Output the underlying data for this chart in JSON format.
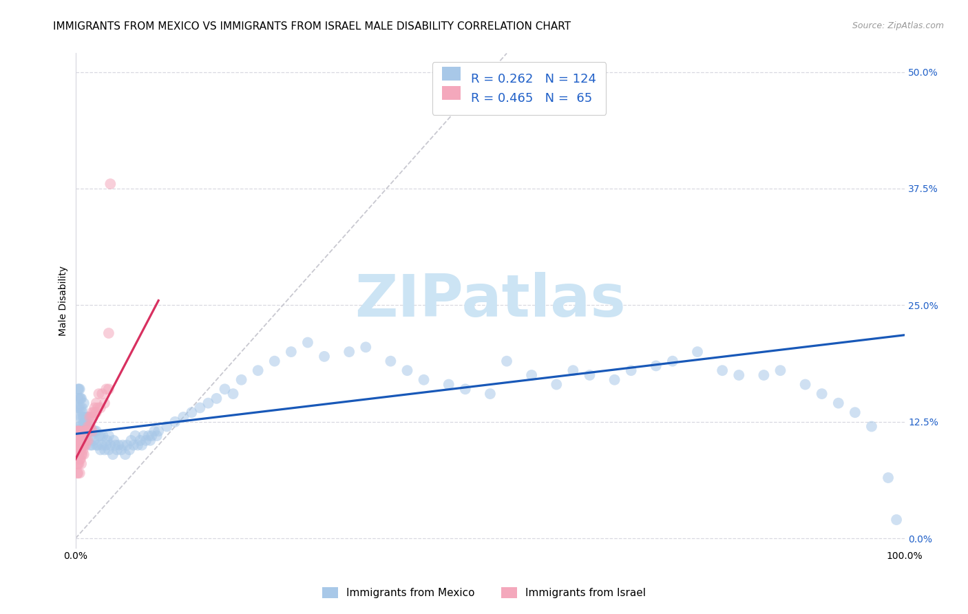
{
  "title": "IMMIGRANTS FROM MEXICO VS IMMIGRANTS FROM ISRAEL MALE DISABILITY CORRELATION CHART",
  "source": "Source: ZipAtlas.com",
  "ylabel": "Male Disability",
  "xlim": [
    0.0,
    1.0
  ],
  "ylim": [
    -0.01,
    0.52
  ],
  "ytick_vals": [
    0.0,
    0.125,
    0.25,
    0.375,
    0.5
  ],
  "ytick_labels": [
    "0.0%",
    "12.5%",
    "25.0%",
    "37.5%",
    "50.0%"
  ],
  "xtick_vals": [
    0.0,
    1.0
  ],
  "xtick_labels": [
    "0.0%",
    "100.0%"
  ],
  "color_mexico": "#a8c8e8",
  "color_israel": "#f4a8bc",
  "color_trendline_mexico": "#1858b8",
  "color_trendline_israel": "#d83060",
  "color_diagonal": "#c8c8d0",
  "color_grid": "#d8d8e0",
  "color_right_ticks": "#2060c8",
  "background_color": "#ffffff",
  "watermark": "ZIPatlas",
  "watermark_color": "#cce4f4",
  "legend_r_mexico": "0.262",
  "legend_n_mexico": "124",
  "legend_r_israel": "0.465",
  "legend_n_israel": " 65",
  "title_fontsize": 11,
  "axis_label_fontsize": 10,
  "tick_fontsize": 10,
  "legend_fontsize": 13,
  "source_fontsize": 9,
  "scatter_size": 130,
  "scatter_alpha": 0.55,
  "mexico_x": [
    0.002,
    0.003,
    0.003,
    0.004,
    0.004,
    0.004,
    0.005,
    0.005,
    0.005,
    0.005,
    0.006,
    0.006,
    0.006,
    0.007,
    0.007,
    0.007,
    0.008,
    0.008,
    0.008,
    0.009,
    0.009,
    0.01,
    0.01,
    0.01,
    0.01,
    0.011,
    0.012,
    0.012,
    0.013,
    0.013,
    0.014,
    0.015,
    0.015,
    0.016,
    0.017,
    0.018,
    0.018,
    0.019,
    0.02,
    0.02,
    0.022,
    0.023,
    0.025,
    0.025,
    0.027,
    0.028,
    0.03,
    0.03,
    0.032,
    0.033,
    0.035,
    0.037,
    0.038,
    0.04,
    0.04,
    0.042,
    0.045,
    0.046,
    0.048,
    0.05,
    0.052,
    0.055,
    0.057,
    0.06,
    0.062,
    0.065,
    0.067,
    0.07,
    0.072,
    0.075,
    0.078,
    0.08,
    0.082,
    0.085,
    0.088,
    0.09,
    0.092,
    0.095,
    0.098,
    0.1,
    0.11,
    0.12,
    0.13,
    0.14,
    0.15,
    0.16,
    0.17,
    0.18,
    0.19,
    0.2,
    0.22,
    0.24,
    0.26,
    0.28,
    0.3,
    0.33,
    0.35,
    0.38,
    0.4,
    0.42,
    0.45,
    0.47,
    0.5,
    0.52,
    0.55,
    0.58,
    0.6,
    0.62,
    0.65,
    0.67,
    0.7,
    0.72,
    0.75,
    0.78,
    0.8,
    0.83,
    0.85,
    0.88,
    0.9,
    0.92,
    0.94,
    0.96,
    0.98,
    0.99
  ],
  "mexico_y": [
    0.14,
    0.15,
    0.16,
    0.12,
    0.14,
    0.16,
    0.11,
    0.13,
    0.15,
    0.16,
    0.12,
    0.14,
    0.15,
    0.11,
    0.13,
    0.15,
    0.12,
    0.135,
    0.14,
    0.115,
    0.13,
    0.1,
    0.12,
    0.13,
    0.145,
    0.125,
    0.11,
    0.125,
    0.115,
    0.13,
    0.12,
    0.115,
    0.13,
    0.12,
    0.115,
    0.1,
    0.115,
    0.11,
    0.1,
    0.115,
    0.105,
    0.115,
    0.1,
    0.115,
    0.1,
    0.11,
    0.095,
    0.11,
    0.1,
    0.11,
    0.095,
    0.1,
    0.105,
    0.095,
    0.11,
    0.1,
    0.09,
    0.105,
    0.1,
    0.095,
    0.1,
    0.095,
    0.1,
    0.09,
    0.1,
    0.095,
    0.105,
    0.1,
    0.11,
    0.1,
    0.105,
    0.1,
    0.11,
    0.105,
    0.11,
    0.105,
    0.11,
    0.115,
    0.11,
    0.115,
    0.12,
    0.125,
    0.13,
    0.135,
    0.14,
    0.145,
    0.15,
    0.16,
    0.155,
    0.17,
    0.18,
    0.19,
    0.2,
    0.21,
    0.195,
    0.2,
    0.205,
    0.19,
    0.18,
    0.17,
    0.165,
    0.16,
    0.155,
    0.19,
    0.175,
    0.165,
    0.18,
    0.175,
    0.17,
    0.18,
    0.185,
    0.19,
    0.2,
    0.18,
    0.175,
    0.175,
    0.18,
    0.165,
    0.155,
    0.145,
    0.135,
    0.12,
    0.065,
    0.02
  ],
  "israel_x": [
    0.001,
    0.001,
    0.001,
    0.002,
    0.002,
    0.002,
    0.002,
    0.002,
    0.003,
    0.003,
    0.003,
    0.003,
    0.003,
    0.004,
    0.004,
    0.004,
    0.004,
    0.005,
    0.005,
    0.005,
    0.005,
    0.005,
    0.006,
    0.006,
    0.006,
    0.007,
    0.007,
    0.007,
    0.008,
    0.008,
    0.008,
    0.009,
    0.009,
    0.01,
    0.01,
    0.01,
    0.011,
    0.012,
    0.012,
    0.013,
    0.013,
    0.014,
    0.015,
    0.015,
    0.016,
    0.017,
    0.017,
    0.018,
    0.019,
    0.02,
    0.02,
    0.021,
    0.022,
    0.023,
    0.025,
    0.025,
    0.027,
    0.028,
    0.03,
    0.032,
    0.035,
    0.037,
    0.04,
    0.04,
    0.042
  ],
  "israel_y": [
    0.09,
    0.1,
    0.11,
    0.07,
    0.08,
    0.09,
    0.1,
    0.115,
    0.07,
    0.08,
    0.09,
    0.1,
    0.115,
    0.08,
    0.09,
    0.1,
    0.115,
    0.07,
    0.085,
    0.095,
    0.105,
    0.115,
    0.085,
    0.095,
    0.11,
    0.08,
    0.09,
    0.105,
    0.09,
    0.1,
    0.115,
    0.095,
    0.105,
    0.09,
    0.1,
    0.115,
    0.105,
    0.1,
    0.115,
    0.105,
    0.115,
    0.115,
    0.105,
    0.12,
    0.115,
    0.12,
    0.13,
    0.12,
    0.13,
    0.115,
    0.135,
    0.13,
    0.135,
    0.14,
    0.135,
    0.145,
    0.14,
    0.155,
    0.14,
    0.155,
    0.145,
    0.16,
    0.16,
    0.22,
    0.38
  ],
  "trendline_mexico_x0": 0.0,
  "trendline_mexico_x1": 1.0,
  "trendline_mexico_y0": 0.112,
  "trendline_mexico_y1": 0.218,
  "trendline_israel_x0": 0.0,
  "trendline_israel_x1": 0.1,
  "trendline_israel_y0": 0.085,
  "trendline_israel_y1": 0.255
}
